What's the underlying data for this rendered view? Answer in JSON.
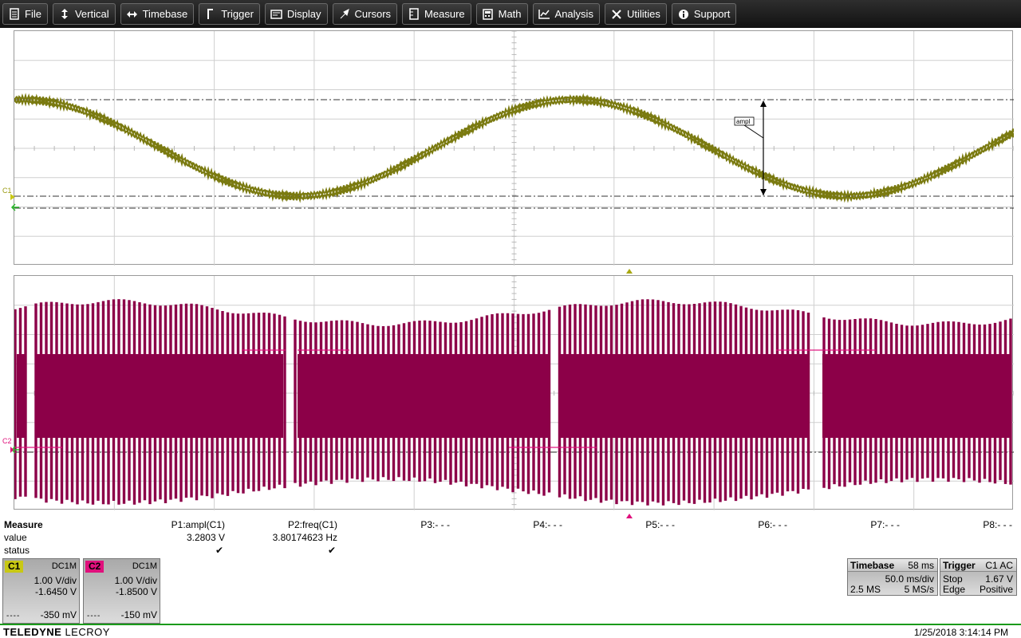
{
  "menu": [
    {
      "name": "file",
      "label": "File",
      "icon": "file-icon"
    },
    {
      "name": "vertical",
      "label": "Vertical",
      "icon": "vertical-arrows-icon"
    },
    {
      "name": "timebase",
      "label": "Timebase",
      "icon": "horizontal-arrows-icon"
    },
    {
      "name": "trigger",
      "label": "Trigger",
      "icon": "trigger-icon"
    },
    {
      "name": "display",
      "label": "Display",
      "icon": "display-icon"
    },
    {
      "name": "cursors",
      "label": "Cursors",
      "icon": "cursor-icon"
    },
    {
      "name": "measure",
      "label": "Measure",
      "icon": "measure-icon"
    },
    {
      "name": "math",
      "label": "Math",
      "icon": "calculator-icon"
    },
    {
      "name": "analysis",
      "label": "Analysis",
      "icon": "analysis-chart-icon"
    },
    {
      "name": "utilities",
      "label": "Utilities",
      "icon": "tools-icon"
    },
    {
      "name": "support",
      "label": "Support",
      "icon": "info-icon"
    }
  ],
  "colors": {
    "c1": "#7a7a10",
    "c2": "#8c0048",
    "c2_label": "#e0107c",
    "c1_label": "#c8c814",
    "footer_line": "#1a9a1a"
  },
  "trace_labels": {
    "c1": "C1",
    "c2": "C2",
    "ampl_marker": "ampl"
  },
  "measure": {
    "header": "Measure",
    "row_value": "value",
    "row_status": "status",
    "params": [
      {
        "label": "P1:ampl(C1)",
        "value": "3.2803 V",
        "status": "✔"
      },
      {
        "label": "P2:freq(C1)",
        "value": "3.80174623 Hz",
        "status": "✔"
      },
      {
        "label": "P3:- - -",
        "value": "",
        "status": ""
      },
      {
        "label": "P4:- - -",
        "value": "",
        "status": ""
      },
      {
        "label": "P5:- - -",
        "value": "",
        "status": ""
      },
      {
        "label": "P6:- - -",
        "value": "",
        "status": ""
      },
      {
        "label": "P7:- - -",
        "value": "",
        "status": ""
      },
      {
        "label": "P8:- - -",
        "value": "",
        "status": ""
      }
    ]
  },
  "channels": [
    {
      "tag": "C1",
      "coupling": "DC1M",
      "vdiv": "1.00 V/div",
      "offset": "-1.6450 V",
      "dashes": "----",
      "bottom": "-350 mV"
    },
    {
      "tag": "C2",
      "coupling": "DC1M",
      "vdiv": "1.00 V/div",
      "offset": "-1.8500 V",
      "dashes": "----",
      "bottom": "-150 mV"
    }
  ],
  "timebase": {
    "title": "Timebase",
    "delay": "58 ms",
    "tdiv": "50.0 ms/div",
    "samples": "2.5 MS",
    "rate": "5 MS/s"
  },
  "trigger": {
    "title": "Trigger",
    "source": "C1 AC",
    "mode": "Stop",
    "level": "1.67 V",
    "type": "Edge",
    "slope": "Positive"
  },
  "footer": {
    "brand_bold": "TELEDYNE",
    "brand_rest": " LECROY",
    "datetime": "1/25/2018 3:14:14 PM"
  },
  "waveforms": {
    "c1_description_period_s": 0.263,
    "c1_frequency_hz": 3.80174623,
    "c1_amplitude_v": 3.2803
  }
}
